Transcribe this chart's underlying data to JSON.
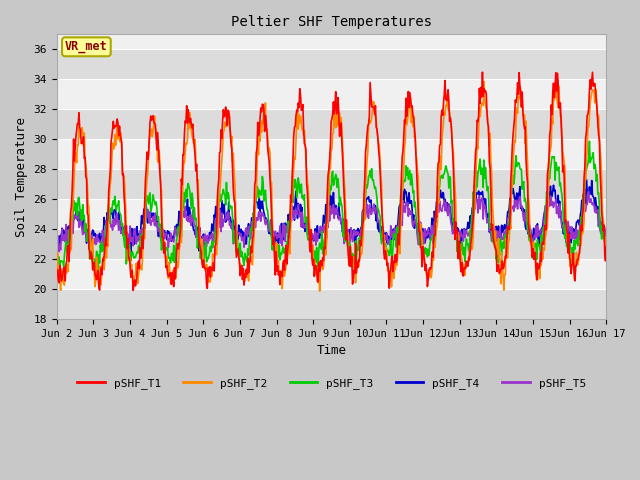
{
  "title": "Peltier SHF Temperatures",
  "xlabel": "Time",
  "ylabel": "Soil Temperature",
  "ylim": [
    18,
    37
  ],
  "yticks": [
    18,
    20,
    22,
    24,
    26,
    28,
    30,
    32,
    34,
    36
  ],
  "xlim": [
    0,
    15
  ],
  "xtick_labels": [
    "Jun 2",
    "Jun 3",
    "Jun 4",
    "Jun 5",
    "Jun 6",
    "Jun 7",
    "Jun 8",
    "Jun 9",
    "Jun 10",
    "Jun 11",
    "Jun 12",
    "Jun 13",
    "Jun 14",
    "Jun 15",
    "Jun 16",
    "Jun 17"
  ],
  "annotation_text": "VR_met",
  "annotation_bg": "#ffff99",
  "annotation_border": "#aaa800",
  "annotation_text_color": "#880000",
  "series_colors": {
    "pSHF_T1": "#ff0000",
    "pSHF_T2": "#ff8800",
    "pSHF_T3": "#00cc00",
    "pSHF_T4": "#0000cc",
    "pSHF_T5": "#9933cc"
  },
  "fig_bg": "#c8c8c8",
  "plot_bg_light": "#f0f0f0",
  "plot_bg_dark": "#dcdcdc",
  "font_family": "monospace"
}
